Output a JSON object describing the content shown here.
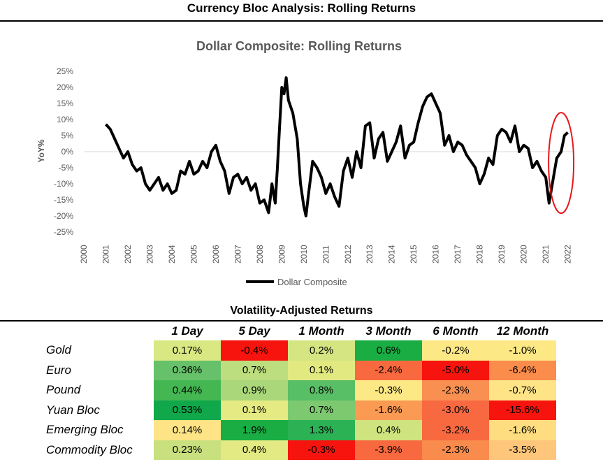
{
  "page_title": "Currency Bloc Analysis: Rolling Returns",
  "chart_data": {
    "type": "line",
    "title": "Dollar Composite: Rolling Returns",
    "xlabel": "",
    "ylabel": "YoY%",
    "xlim": [
      2000,
      2022.3
    ],
    "ylim": [
      -25,
      25
    ],
    "x_ticks": [
      "2000",
      "2001",
      "2002",
      "2003",
      "2004",
      "2005",
      "2006",
      "2007",
      "2008",
      "2009",
      "2010",
      "2011",
      "2012",
      "2013",
      "2014",
      "2015",
      "2016",
      "2017",
      "2018",
      "2019",
      "2020",
      "2021",
      "2022"
    ],
    "y_ticks": [
      "25%",
      "20%",
      "15%",
      "10%",
      "5%",
      "0%",
      "-5%",
      "-10%",
      "-15%",
      "-20%",
      "-25%"
    ],
    "legend": {
      "position": "bottom",
      "label": "Dollar Composite"
    },
    "series": [
      {
        "name": "Dollar Composite",
        "color": "#000000",
        "x": [
          2001.0,
          2001.2,
          2001.4,
          2001.6,
          2001.8,
          2002.0,
          2002.2,
          2002.4,
          2002.6,
          2002.8,
          2003.0,
          2003.2,
          2003.4,
          2003.6,
          2003.8,
          2004.0,
          2004.2,
          2004.4,
          2004.6,
          2004.8,
          2005.0,
          2005.2,
          2005.4,
          2005.6,
          2005.8,
          2006.0,
          2006.2,
          2006.4,
          2006.6,
          2006.8,
          2007.0,
          2007.2,
          2007.4,
          2007.6,
          2007.8,
          2008.0,
          2008.2,
          2008.4,
          2008.55,
          2008.7,
          2008.8,
          2008.9,
          2009.0,
          2009.1,
          2009.2,
          2009.3,
          2009.5,
          2009.7,
          2009.85,
          2010.0,
          2010.1,
          2010.2,
          2010.4,
          2010.6,
          2010.8,
          2011.0,
          2011.2,
          2011.4,
          2011.6,
          2011.8,
          2012.0,
          2012.2,
          2012.4,
          2012.6,
          2012.8,
          2013.0,
          2013.2,
          2013.4,
          2013.6,
          2013.8,
          2014.0,
          2014.2,
          2014.4,
          2014.6,
          2014.8,
          2015.0,
          2015.2,
          2015.4,
          2015.6,
          2015.8,
          2016.0,
          2016.2,
          2016.4,
          2016.6,
          2016.8,
          2017.0,
          2017.2,
          2017.4,
          2017.6,
          2017.8,
          2018.0,
          2018.2,
          2018.4,
          2018.6,
          2018.8,
          2019.0,
          2019.2,
          2019.4,
          2019.6,
          2019.8,
          2020.0,
          2020.2,
          2020.4,
          2020.6,
          2020.8,
          2021.0,
          2021.15,
          2021.3,
          2021.5,
          2021.7,
          2021.85,
          2022.0
        ],
        "values": [
          8.5,
          7,
          4,
          1,
          -2,
          0,
          -4,
          -6,
          -5,
          -10,
          -12,
          -10,
          -8,
          -12,
          -10,
          -13,
          -12,
          -6,
          -7,
          -3,
          -7,
          -6,
          -3,
          -5,
          0,
          2,
          -3,
          -6,
          -13,
          -8,
          -7,
          -10,
          -8,
          -12,
          -10,
          -16,
          -15,
          -19,
          -10,
          -16,
          -5,
          8,
          20,
          18,
          23,
          16,
          12,
          4,
          -10,
          -17,
          -20,
          -14,
          -3,
          -5,
          -8,
          -13,
          -10,
          -14,
          -17,
          -6,
          -2,
          -8,
          0,
          -5,
          8,
          9,
          -2,
          4,
          6,
          -3,
          0,
          3,
          8,
          -2,
          2,
          3,
          9,
          14,
          17,
          18,
          15,
          12,
          2,
          5,
          0,
          3,
          2,
          -1,
          -3,
          -5,
          -10,
          -7,
          -2,
          -4,
          5,
          7,
          6,
          3,
          8,
          0,
          2,
          1,
          -5,
          -3,
          -6,
          -8,
          -16,
          -10,
          -2,
          0,
          5,
          6
        ]
      }
    ],
    "annotation": {
      "type": "ellipse",
      "color": "#e8171a",
      "x_center": 2021.7,
      "y_center": -3.5,
      "note": "red circle highlighting recent move"
    }
  },
  "table": {
    "title": "Volatility-Adjusted Returns",
    "columns": [
      "1 Day",
      "5 Day",
      "1 Month",
      "3 Month",
      "6 Month",
      "12 Month"
    ],
    "rows": [
      {
        "label": "Gold",
        "cells": [
          {
            "text": "0.17%",
            "color": "#d9e882"
          },
          {
            "text": "-0.4%",
            "color": "#f8140e"
          },
          {
            "text": "0.2%",
            "color": "#d4e581"
          },
          {
            "text": "0.6%",
            "color": "#19ad43"
          },
          {
            "text": "-0.2%",
            "color": "#fde886"
          },
          {
            "text": "-1.0%",
            "color": "#fde886"
          }
        ]
      },
      {
        "label": "Euro",
        "cells": [
          {
            "text": "0.36%",
            "color": "#66c16a"
          },
          {
            "text": "0.7%",
            "color": "#bdde7e"
          },
          {
            "text": "0.1%",
            "color": "#e2e981"
          },
          {
            "text": "-2.4%",
            "color": "#f8693f"
          },
          {
            "text": "-5.0%",
            "color": "#f8140e"
          },
          {
            "text": "-6.4%",
            "color": "#fa8c4c"
          }
        ]
      },
      {
        "label": "Pound",
        "cells": [
          {
            "text": "0.44%",
            "color": "#45b752"
          },
          {
            "text": "0.9%",
            "color": "#aad77a"
          },
          {
            "text": "0.8%",
            "color": "#58bf66"
          },
          {
            "text": "-0.3%",
            "color": "#fde886"
          },
          {
            "text": "-2.3%",
            "color": "#f98f50"
          },
          {
            "text": "-0.7%",
            "color": "#fee487"
          }
        ]
      },
      {
        "label": "Yuan Bloc",
        "cells": [
          {
            "text": "0.53%",
            "color": "#10a84b"
          },
          {
            "text": "0.1%",
            "color": "#e5ea83"
          },
          {
            "text": "0.7%",
            "color": "#7dc96f"
          },
          {
            "text": "-1.6%",
            "color": "#fa9a53"
          },
          {
            "text": "-3.0%",
            "color": "#f86942"
          },
          {
            "text": "-15.6%",
            "color": "#f8140e"
          }
        ]
      },
      {
        "label": "Emerging Bloc",
        "cells": [
          {
            "text": "0.14%",
            "color": "#fee486"
          },
          {
            "text": "1.9%",
            "color": "#19ad43"
          },
          {
            "text": "1.3%",
            "color": "#2bb254"
          },
          {
            "text": "0.4%",
            "color": "#cfe37f"
          },
          {
            "text": "-3.2%",
            "color": "#f8693f"
          },
          {
            "text": "-1.6%",
            "color": "#fedc80"
          }
        ]
      },
      {
        "label": "Commodity Bloc",
        "cells": [
          {
            "text": "0.23%",
            "color": "#c9e07e"
          },
          {
            "text": "0.4%",
            "color": "#e3e983"
          },
          {
            "text": "-0.3%",
            "color": "#f8140e"
          },
          {
            "text": "-3.9%",
            "color": "#f8693f"
          },
          {
            "text": "-2.3%",
            "color": "#f98b4c"
          },
          {
            "text": "-3.5%",
            "color": "#fdc67a"
          }
        ]
      }
    ]
  }
}
